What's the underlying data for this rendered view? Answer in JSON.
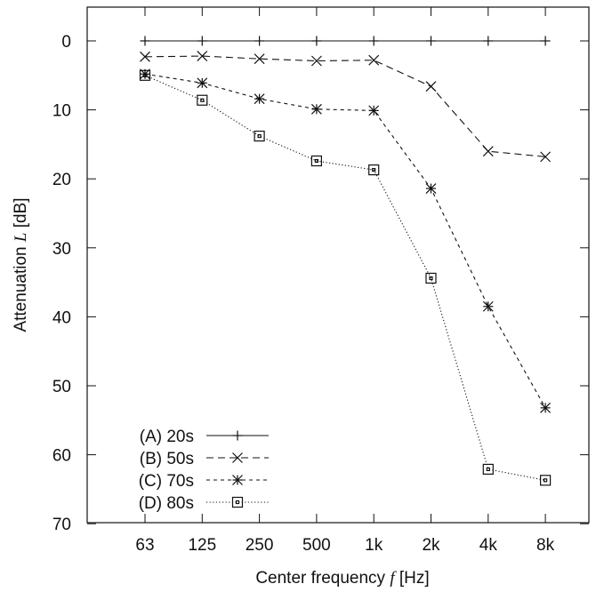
{
  "chart_data": {
    "type": "line",
    "categories": [
      "63",
      "125",
      "250",
      "500",
      "1k",
      "2k",
      "4k",
      "8k"
    ],
    "xlabel_prefix": "Center frequency",
    "xlabel_var": "f",
    "xlabel_unit": "[Hz]",
    "ylabel_prefix": "Attenuation",
    "ylabel_var": "L",
    "ylabel_unit": "[dB]",
    "ylim": [
      70,
      -5
    ],
    "yticks": [
      0,
      10,
      20,
      30,
      40,
      50,
      60,
      70
    ],
    "y_inverted": true,
    "grid": false,
    "legend_position": "bottom-left",
    "series": [
      {
        "name": "(A) 20s",
        "marker": "plus",
        "dash": "solid",
        "values": [
          0,
          0,
          0,
          0,
          0,
          0,
          0,
          0
        ]
      },
      {
        "name": "(B) 50s",
        "marker": "x",
        "dash": "dashed",
        "values": [
          2.3,
          2.2,
          2.6,
          2.9,
          2.8,
          6.6,
          16.0,
          16.8
        ]
      },
      {
        "name": "(C) 70s",
        "marker": "star",
        "dash": "short-dashed",
        "values": [
          4.8,
          6.1,
          8.4,
          9.9,
          10.1,
          21.4,
          38.5,
          53.2
        ]
      },
      {
        "name": "(D) 80s",
        "marker": "square",
        "dash": "dotted",
        "values": [
          5.0,
          8.6,
          13.8,
          17.4,
          18.7,
          34.4,
          62.1,
          63.7
        ]
      }
    ]
  }
}
